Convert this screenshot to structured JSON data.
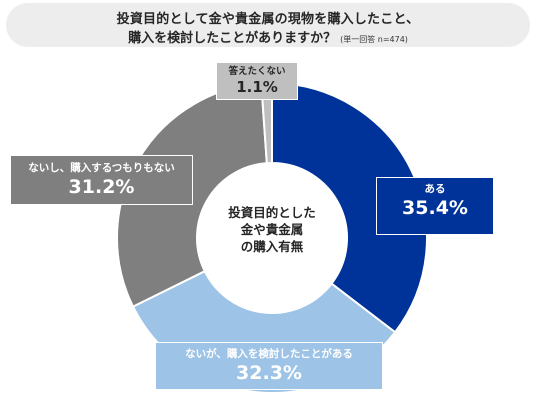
{
  "title": {
    "line1": "投資目的として金や貴金属の現物を購入したこと、",
    "line2": "購入を検討したことがありますか？",
    "note": "(単一回答 n=474)"
  },
  "center_label": [
    "投資目的とした",
    "金や貴金属",
    "の購入有無"
  ],
  "colors": {
    "aru": "#003399",
    "kentou": "#9dc3e6",
    "nai": "#7f7f7f",
    "kotaetakunai": "#bfbfbf"
  },
  "chart_data": {
    "type": "pie",
    "donut": true,
    "start": "12 o'clock, clockwise",
    "slices": [
      {
        "label": "ある",
        "value": 35.4,
        "display": "35.4%",
        "color": "#003399"
      },
      {
        "label": "ないが、購入を検討したことがある",
        "value": 32.3,
        "display": "32.3%",
        "color": "#9dc3e6"
      },
      {
        "label": "ないし、購入するつもりもない",
        "value": 31.2,
        "display": "31.2%",
        "color": "#7f7f7f"
      },
      {
        "label": "答えたくない",
        "value": 1.1,
        "display": "1.1%",
        "color": "#bfbfbf"
      }
    ]
  }
}
